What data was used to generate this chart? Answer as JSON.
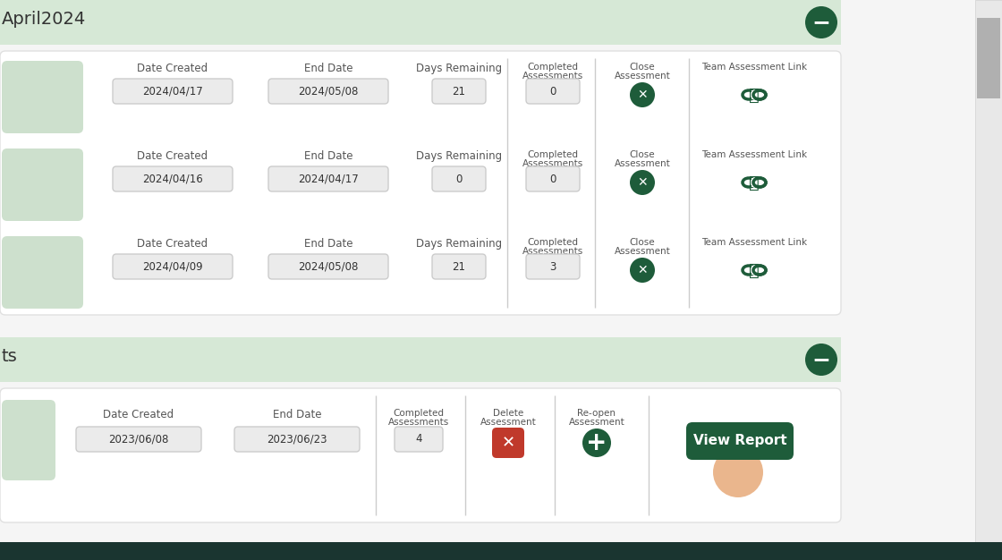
{
  "bg_color": "#f5f5f5",
  "section_header_bg": "#d6e8d6",
  "card_bg": "#ffffff",
  "input_bg": "#ebebeb",
  "input_border": "#cccccc",
  "dark_green": "#1e5c3a",
  "light_green": "#cde0cd",
  "red_btn": "#c0392b",
  "orange_color": "#e09050",
  "text_dark": "#333333",
  "text_gray": "#555555",
  "divider_color": "#cccccc",
  "section1_label": "April2024",
  "section2_label": "ts",
  "rows_top": [
    {
      "date_created": "2024/04/17",
      "end_date": "2024/05/08",
      "days_remaining": "21",
      "completed": "0"
    },
    {
      "date_created": "2024/04/16",
      "end_date": "2024/04/17",
      "days_remaining": "0",
      "completed": "0"
    },
    {
      "date_created": "2024/04/09",
      "end_date": "2024/05/08",
      "days_remaining": "21",
      "completed": "3"
    }
  ],
  "row_bottom": {
    "date_created": "2023/06/08",
    "end_date": "2023/06/23",
    "completed": "4"
  },
  "view_report_text": "View Report",
  "bottom_bar_color": "#1a3530",
  "scrollbar_bg": "#e0e0e0",
  "scrollbar_thumb": "#b0b0b0"
}
